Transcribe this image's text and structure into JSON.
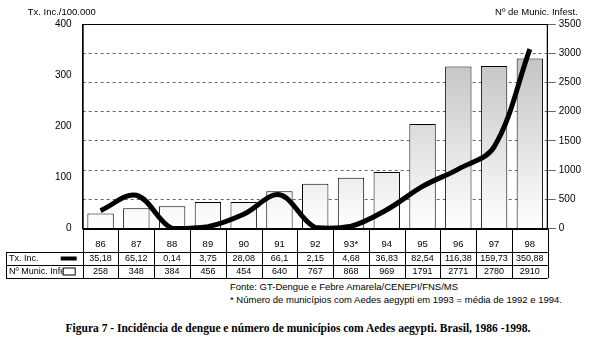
{
  "chart_data": {
    "type": "bar",
    "title": "Figura 7 - Incidência de dengue e número de municípios com Aedes aegypti. Brasil, 1986 -1998.",
    "annotations": [
      "Fonte: GT-Dengue e Febre Amarela/CENEPI/FNS/MS",
      "* Número de municípios com Aedes aegypti em 1993 = média de 1992 e 1994."
    ],
    "ylabel": "Tx. Inc./100.000",
    "y2label": "Nº de Munic. Infest.",
    "categories": [
      "86",
      "87",
      "88",
      "89",
      "90",
      "91",
      "92",
      "93*",
      "94",
      "95",
      "96",
      "97",
      "98"
    ],
    "series": [
      {
        "name": "Tx. Inc.",
        "type": "line",
        "color": "#000000",
        "values": [
          35.18,
          65.12,
          0.14,
          3.75,
          28.08,
          66.1,
          2.15,
          4.68,
          36.83,
          82.54,
          116.38,
          159.73,
          350.88
        ],
        "value_labels": [
          "35,18",
          "65,12",
          "0,14",
          "3,75",
          "28,08",
          "66,1",
          "2,15",
          "4,68",
          "36,83",
          "82,54",
          "116,38",
          "159,73",
          "350,88"
        ]
      },
      {
        "name": "Nº Munic. Infest.",
        "type": "bar",
        "color": "#b8b8b8",
        "axis": "y2",
        "values": [
          258,
          348,
          384,
          456,
          454,
          640,
          767,
          868,
          969,
          1791,
          2771,
          2780,
          2910
        ]
      }
    ],
    "ylim": [
      0,
      400
    ],
    "yticks": [
      0,
      100,
      200,
      300,
      400
    ],
    "y2lim": [
      0,
      3500
    ],
    "y2ticks": [
      0,
      500,
      1000,
      1500,
      2000,
      2500,
      3000,
      3500
    ],
    "grid": true
  }
}
